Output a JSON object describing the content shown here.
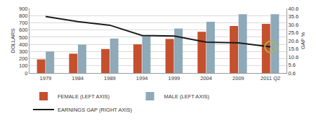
{
  "chart_data": {
    "type": "bar",
    "categories": [
      "1979",
      "1984",
      "1989",
      "1994",
      "1999",
      "2004",
      "2009",
      "2011 Q2"
    ],
    "series": [
      {
        "name": "FEMALE (LEFT AXIS)",
        "color": "#c5502d",
        "values": [
          190,
          270,
          335,
          400,
          475,
          575,
          655,
          685
        ]
      },
      {
        "name": "MALE (LEFT AXIS)",
        "color": "#8ea9b8",
        "values": [
          300,
          395,
          480,
          520,
          620,
          715,
          820,
          820
        ]
      },
      {
        "name": "EARNINGS GAP (RIGHT AXIS)",
        "color": "#1a1a1a",
        "type": "line",
        "axis": "y2",
        "values": [
          35.6,
          32.4,
          30.2,
          23.9,
          23.5,
          19.7,
          19.3,
          16.8
        ]
      }
    ],
    "y_label": "DOLLARS",
    "y2_label": "GAP %",
    "ylim": [
      0,
      900
    ],
    "yticks": [
      0,
      100,
      200,
      300,
      400,
      500,
      600,
      700,
      800,
      900
    ],
    "y2lim": [
      0.6,
      40.6
    ],
    "y2ticks": [
      0.6,
      5.6,
      10.6,
      15.6,
      20.6,
      25.6,
      30.6,
      35.6,
      40.6
    ],
    "grid": true,
    "legend": "bottom"
  }
}
